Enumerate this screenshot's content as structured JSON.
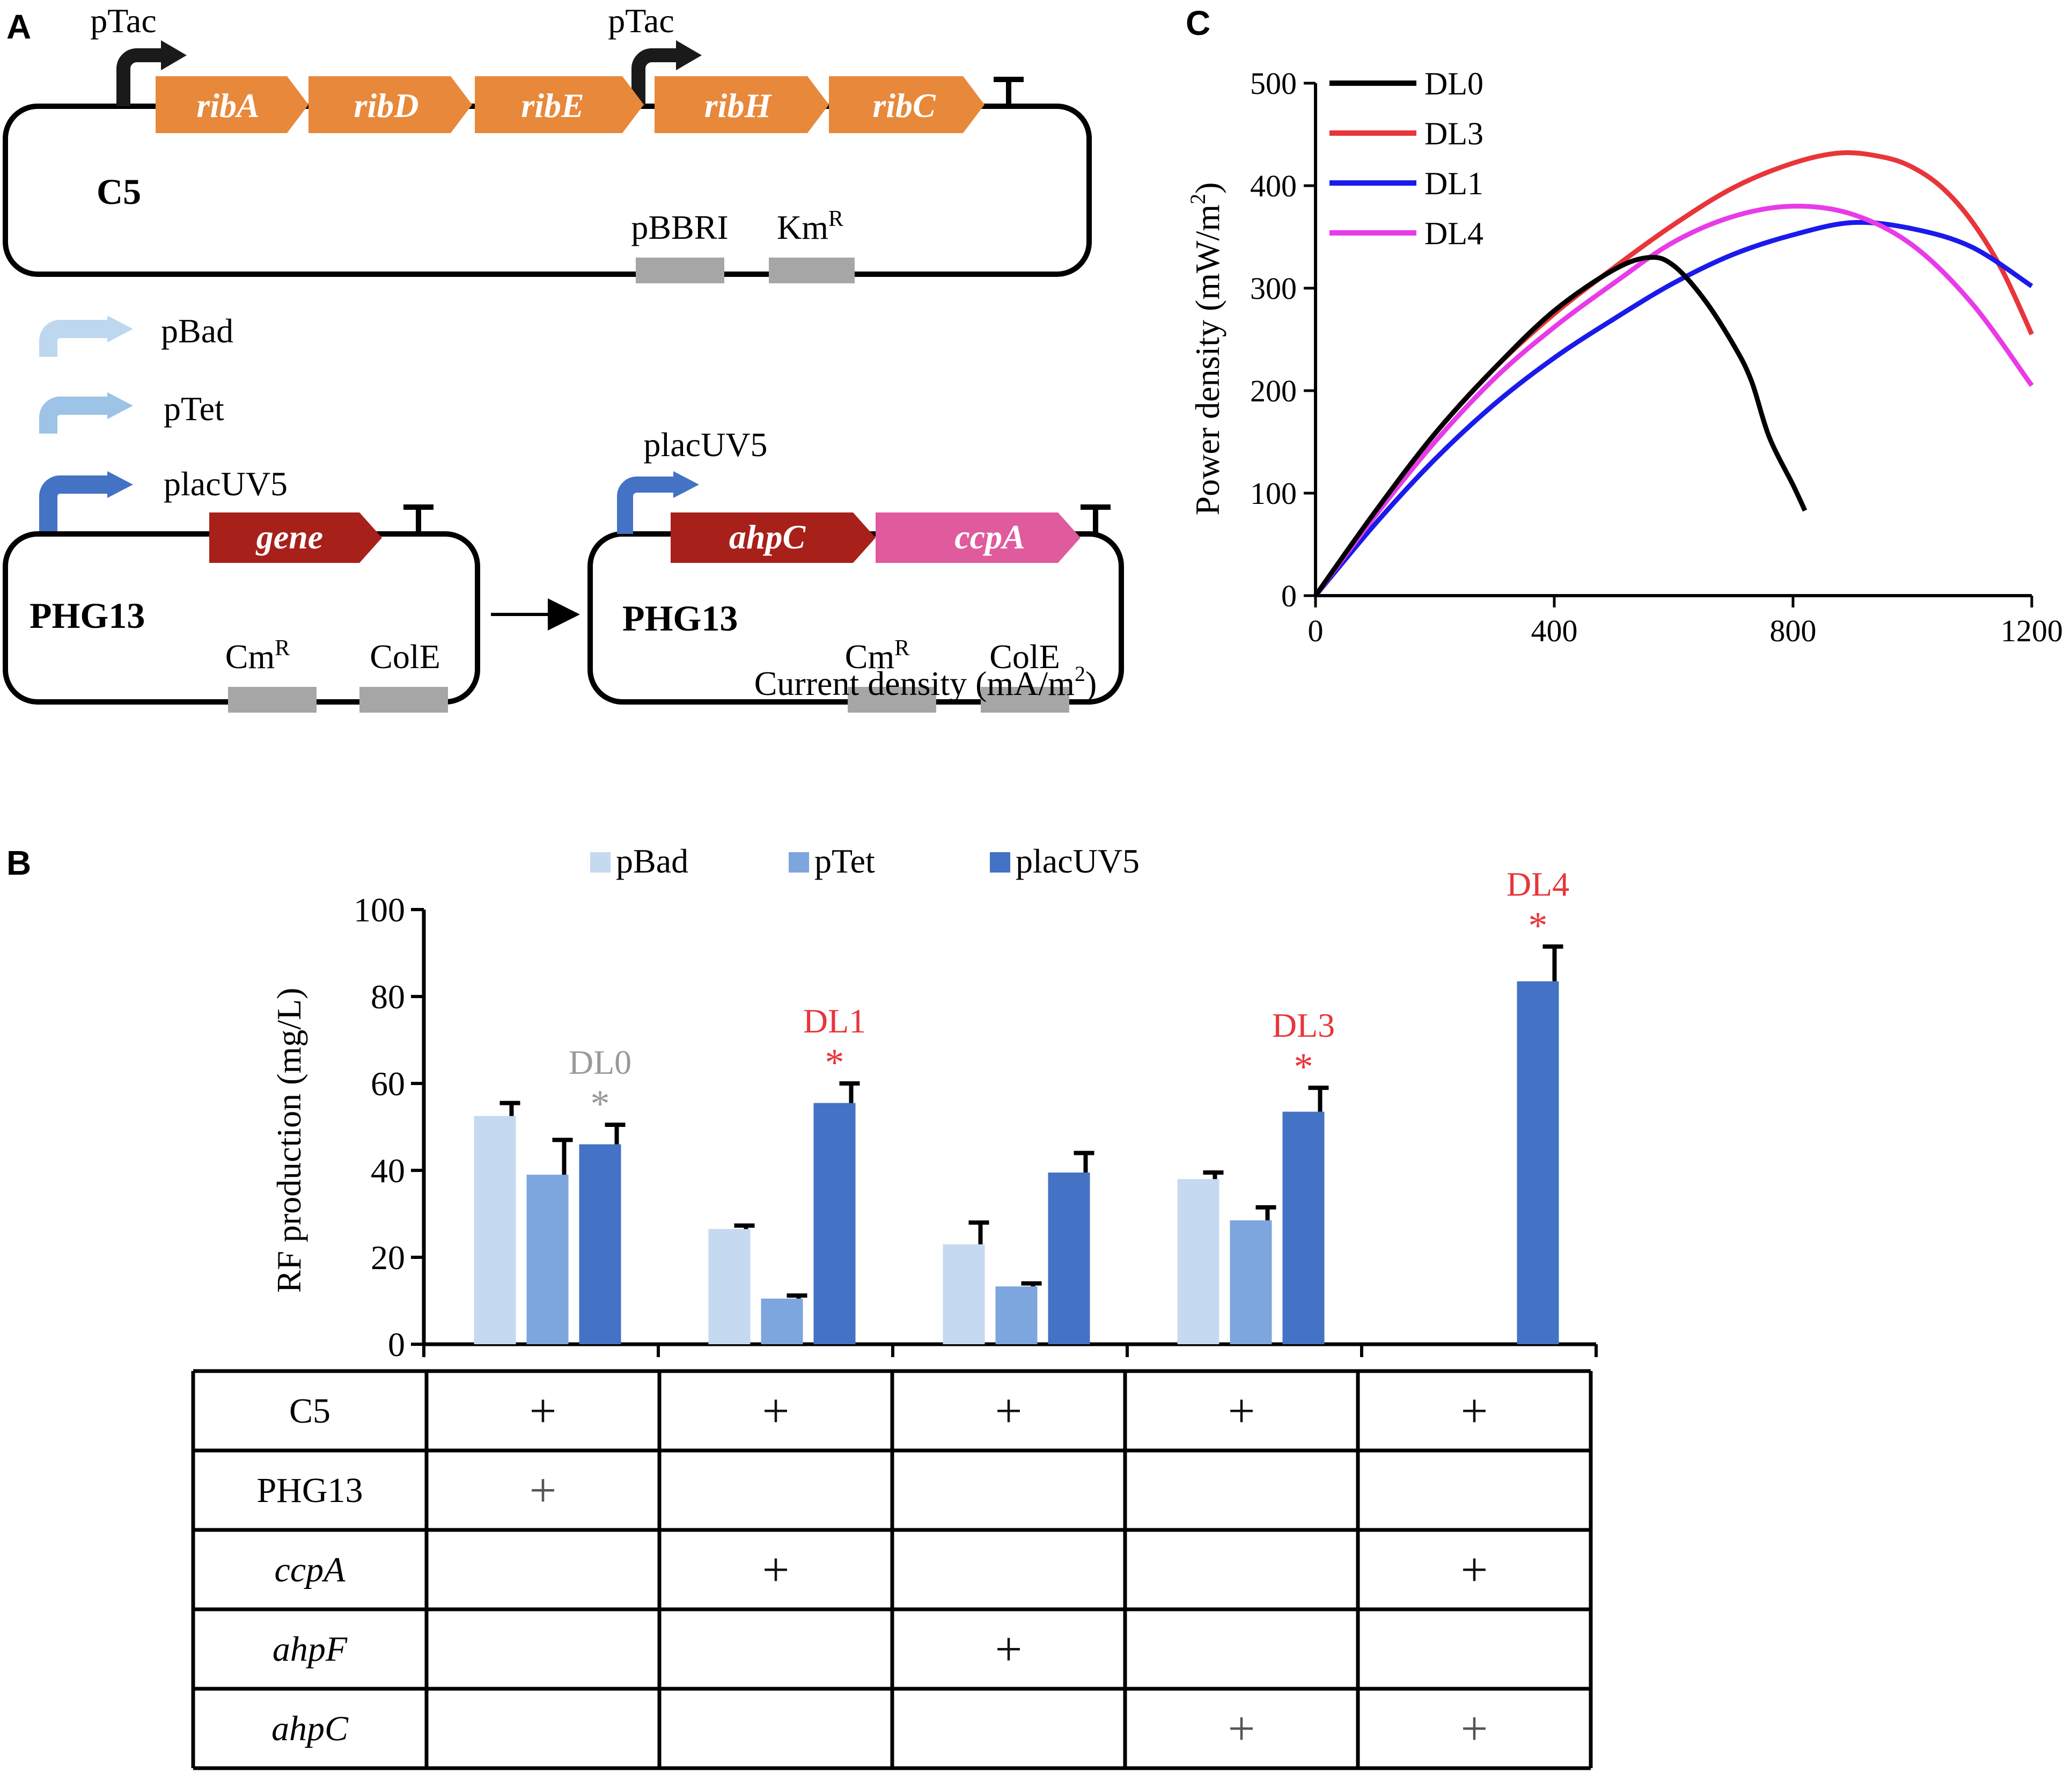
{
  "panel_labels": {
    "a": "A",
    "b": "B",
    "c": "C"
  },
  "panelA": {
    "c5": {
      "name": "C5",
      "promoter1": "pTac",
      "promoter2": "pTac",
      "genes": [
        "ribA",
        "ribD",
        "ribE",
        "ribH",
        "ribC"
      ],
      "elements": [
        "pBBRI",
        "Km"
      ],
      "km_sup": "R",
      "gene_color": "#E8883A"
    },
    "promoters": [
      "pBad",
      "pTet",
      "placUV5"
    ],
    "phg13_left": {
      "name": "PHG13",
      "gene": "gene",
      "cm": "Cm",
      "cm_sup": "R",
      "cole": "ColE"
    },
    "phg13_right": {
      "name": "PHG13",
      "promoter": "placUV5",
      "genes": [
        "ahpC",
        "ccpA"
      ],
      "cm": "Cm",
      "cm_sup": "R",
      "cole": "ColE"
    },
    "colors": {
      "pbad": "#BDD7EE",
      "ptet": "#9DC3E6",
      "placuv5": "#4472C4",
      "dark_red": "#A8201A",
      "pink": "#E05A9E",
      "grey_box": "#A6A6A6"
    }
  },
  "panelB": {
    "legend": [
      "pBad",
      "pTet",
      "placUV5"
    ],
    "colors": [
      "#C5D9F1",
      "#7DA6DE",
      "#4472C4"
    ],
    "ylabel": "RF production (mg/L)",
    "y_ticks": [
      "0",
      "20",
      "40",
      "60",
      "80",
      "100"
    ],
    "annotations": [
      {
        "label": "DL0",
        "star": "*",
        "color": "#999999"
      },
      {
        "label": "DL1",
        "star": "*",
        "color": "#E8353A"
      },
      {
        "label": "DL3",
        "star": "*",
        "color": "#E8353A"
      },
      {
        "label": "DL4",
        "star": "*",
        "color": "#E8353A"
      }
    ],
    "table": {
      "rows": [
        {
          "label": "C5",
          "italic": false,
          "marks": [
            "+",
            "+",
            "+",
            "+",
            "+"
          ]
        },
        {
          "label": "PHG13",
          "italic": false,
          "marks": [
            "+",
            "",
            "",
            "",
            ""
          ]
        },
        {
          "label": "ccpA",
          "italic": true,
          "marks": [
            "",
            "+",
            "",
            "",
            "+"
          ]
        },
        {
          "label": "ahpF",
          "italic": true,
          "marks": [
            "",
            "",
            "+",
            "",
            ""
          ]
        },
        {
          "label": "ahpC",
          "italic": true,
          "marks": [
            "",
            "",
            "",
            "+",
            "+"
          ]
        }
      ]
    }
  },
  "chart_data": [
    {
      "type": "bar",
      "title": "",
      "ylabel": "RF production (mg/L)",
      "xlabel": "",
      "ylim": [
        0,
        100
      ],
      "categories": [
        "C5+PHG13",
        "C5+ccpA",
        "C5+ahpF",
        "C5+ahpC",
        "C5+ccpA+ahpC"
      ],
      "series": [
        {
          "name": "pBad",
          "values": [
            52.5,
            26.5,
            23,
            38,
            null
          ],
          "errors": [
            3,
            0.8,
            5,
            1.5,
            null
          ]
        },
        {
          "name": "pTet",
          "values": [
            39,
            10.5,
            13.3,
            28.5,
            null
          ],
          "errors": [
            8,
            0.7,
            0.7,
            3,
            null
          ]
        },
        {
          "name": "placUV5",
          "values": [
            46,
            55.5,
            39.5,
            53.5,
            83.5
          ],
          "errors": [
            4.5,
            4.5,
            4.5,
            5.5,
            8
          ]
        }
      ]
    },
    {
      "type": "line",
      "title": "",
      "xlabel": "Current density (mA/m",
      "xlabel_sup": "2",
      "xlabel_end": ")",
      "ylabel": "Power density (mW/m",
      "ylabel_sup": "2",
      "ylabel_end": ")",
      "xlim": [
        0,
        1200
      ],
      "ylim": [
        0,
        500
      ],
      "x_ticks": [
        "0",
        "400",
        "800",
        "1200"
      ],
      "y_ticks": [
        "0",
        "100",
        "200",
        "300",
        "400",
        "500"
      ],
      "series": [
        {
          "name": "DL0",
          "color": "#000000",
          "x": [
            0,
            100,
            200,
            300,
            400,
            500,
            560,
            600,
            650,
            700,
            730,
            760,
            800,
            820
          ],
          "y": [
            0,
            82,
            158,
            222,
            278,
            318,
            330,
            322,
            290,
            245,
            210,
            155,
            108,
            83
          ]
        },
        {
          "name": "DL3",
          "color": "#E8353A",
          "x": [
            0,
            100,
            200,
            300,
            400,
            500,
            600,
            700,
            800,
            880,
            950,
            1000,
            1050,
            1100,
            1150,
            1200
          ],
          "y": [
            0,
            82,
            158,
            222,
            275,
            320,
            362,
            398,
            422,
            432,
            428,
            418,
            398,
            365,
            318,
            255
          ]
        },
        {
          "name": "DL1",
          "color": "#1A1AEB",
          "x": [
            0,
            100,
            200,
            300,
            400,
            500,
            600,
            700,
            800,
            900,
            1000,
            1100,
            1200
          ],
          "y": [
            0,
            70,
            133,
            187,
            232,
            270,
            305,
            333,
            352,
            364,
            358,
            340,
            302
          ]
        },
        {
          "name": "DL4",
          "color": "#E83BE8",
          "x": [
            0,
            100,
            200,
            300,
            400,
            500,
            600,
            700,
            800,
            900,
            1000,
            1100,
            1200
          ],
          "y": [
            0,
            78,
            150,
            212,
            262,
            305,
            345,
            370,
            380,
            372,
            342,
            285,
            205
          ]
        }
      ]
    }
  ]
}
